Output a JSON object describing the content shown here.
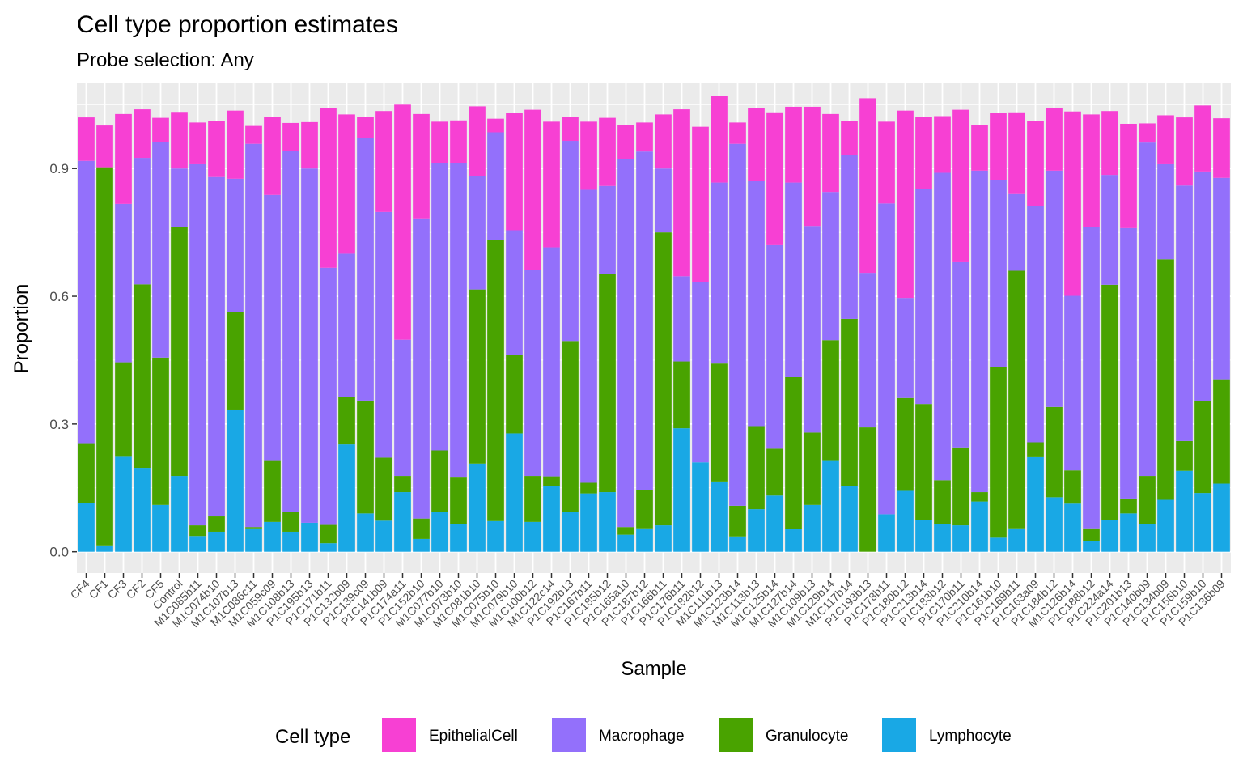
{
  "chart_data": {
    "type": "bar",
    "stacked": true,
    "title": "Cell type proportion estimates",
    "subtitle": "Probe selection: Any",
    "xlabel": "Sample",
    "ylabel": "Proportion",
    "ylim": [
      -0.05,
      1.1
    ],
    "yticks": [
      "0.0",
      "0.3",
      "0.6",
      "0.9"
    ],
    "ytick_values": [
      0,
      0.3,
      0.6,
      0.9
    ],
    "grid": true,
    "legend": {
      "title": "Cell type",
      "position": "bottom"
    },
    "categories": [
      "CF4",
      "CF1",
      "CF3",
      "CF2",
      "CF5",
      "Control",
      "M1C085b11",
      "M1C074b10",
      "M1C107b13",
      "M1C086c11",
      "M1C059c09",
      "M1C108b13",
      "P1C195b13",
      "P1C171b11",
      "P1C132b09",
      "P1C139c09",
      "P1C141b09",
      "P1C174a11",
      "P1C152b10",
      "M1C077b10",
      "M1C073b10",
      "M1C081b10",
      "M1C075b10",
      "M1C079b10",
      "M1C100b12",
      "M1C122c14",
      "P1C192b13",
      "P1C167b11",
      "P1C185b12",
      "P1C165a10",
      "P1C187b12",
      "P1C166b11",
      "P1C176b11",
      "P1C182b12",
      "M1C111b13",
      "M1C123b14",
      "M1C113b13",
      "M1C125b14",
      "M1C127b14",
      "M1C109b13",
      "M1C129b14",
      "M1C117b14",
      "P1C193b13",
      "P1C178b11",
      "P1C180b12",
      "P1C213b14",
      "P1C183b12",
      "P1C170b11",
      "P1C210b14",
      "P1C161b10",
      "P1C169b11",
      "P1C163a09",
      "P1C184b12",
      "M1C126b14",
      "P1C188b12",
      "P1C224a14",
      "P1C201b13",
      "P1C140b09",
      "P1C134b09",
      "P1C156b10",
      "P1C159b10",
      "P1C136b09"
    ],
    "series": [
      {
        "name": "Lymphocyte",
        "color": "#19a8e5",
        "values": [
          0.115,
          0.015,
          0.223,
          0.197,
          0.11,
          0.178,
          0.037,
          0.047,
          0.334,
          0.055,
          0.07,
          0.047,
          0.068,
          0.02,
          0.252,
          0.09,
          0.073,
          0.14,
          0.03,
          0.093,
          0.065,
          0.207,
          0.072,
          0.278,
          0.07,
          0.155,
          0.093,
          0.137,
          0.14,
          0.04,
          0.055,
          0.062,
          0.29,
          0.21,
          0.165,
          0.036,
          0.1,
          0.132,
          0.053,
          0.11,
          0.215,
          0.155,
          0.0,
          0.088,
          0.143,
          0.075,
          0.065,
          0.062,
          0.118,
          0.033,
          0.055,
          0.222,
          0.128,
          0.113,
          0.025,
          0.075,
          0.09,
          0.065,
          0.122,
          0.19,
          0.138,
          0.16
        ]
      },
      {
        "name": "Granulocyte",
        "color": "#49a300",
        "values": [
          0.14,
          0.888,
          0.222,
          0.431,
          0.346,
          0.585,
          0.025,
          0.036,
          0.229,
          0.003,
          0.145,
          0.047,
          0.0,
          0.043,
          0.111,
          0.265,
          0.148,
          0.038,
          0.048,
          0.145,
          0.111,
          0.409,
          0.66,
          0.184,
          0.108,
          0.022,
          0.402,
          0.025,
          0.512,
          0.018,
          0.09,
          0.688,
          0.157,
          0.0,
          0.277,
          0.072,
          0.195,
          0.11,
          0.357,
          0.17,
          0.282,
          0.392,
          0.292,
          0.0,
          0.218,
          0.272,
          0.103,
          0.183,
          0.022,
          0.4,
          0.605,
          0.035,
          0.212,
          0.078,
          0.03,
          0.552,
          0.035,
          0.113,
          0.565,
          0.07,
          0.215,
          0.245
        ]
      },
      {
        "name": "Macrophage",
        "color": "#9370fb",
        "values": [
          0.663,
          0.0,
          0.372,
          0.297,
          0.506,
          0.137,
          0.848,
          0.797,
          0.313,
          0.9,
          0.623,
          0.848,
          0.832,
          0.604,
          0.337,
          0.617,
          0.577,
          0.32,
          0.705,
          0.674,
          0.737,
          0.267,
          0.253,
          0.293,
          0.483,
          0.538,
          0.47,
          0.688,
          0.207,
          0.864,
          0.795,
          0.15,
          0.2,
          0.423,
          0.425,
          0.85,
          0.575,
          0.478,
          0.457,
          0.485,
          0.348,
          0.385,
          0.363,
          0.73,
          0.235,
          0.505,
          0.722,
          0.435,
          0.755,
          0.44,
          0.18,
          0.555,
          0.555,
          0.41,
          0.707,
          0.258,
          0.635,
          0.783,
          0.223,
          0.6,
          0.54,
          0.473
        ]
      },
      {
        "name": "EpithelialCell",
        "color": "#f740d3",
        "values": [
          0.102,
          0.098,
          0.211,
          0.114,
          0.057,
          0.133,
          0.098,
          0.131,
          0.16,
          0.042,
          0.184,
          0.065,
          0.109,
          0.375,
          0.327,
          0.05,
          0.237,
          0.552,
          0.245,
          0.098,
          0.1,
          0.163,
          0.032,
          0.275,
          0.377,
          0.295,
          0.057,
          0.16,
          0.16,
          0.08,
          0.068,
          0.127,
          0.392,
          0.365,
          0.203,
          0.05,
          0.172,
          0.312,
          0.178,
          0.28,
          0.183,
          0.08,
          0.41,
          0.192,
          0.44,
          0.17,
          0.133,
          0.358,
          0.107,
          0.157,
          0.192,
          0.2,
          0.148,
          0.433,
          0.265,
          0.15,
          0.245,
          0.045,
          0.115,
          0.16,
          0.155,
          0.14
        ]
      }
    ]
  }
}
